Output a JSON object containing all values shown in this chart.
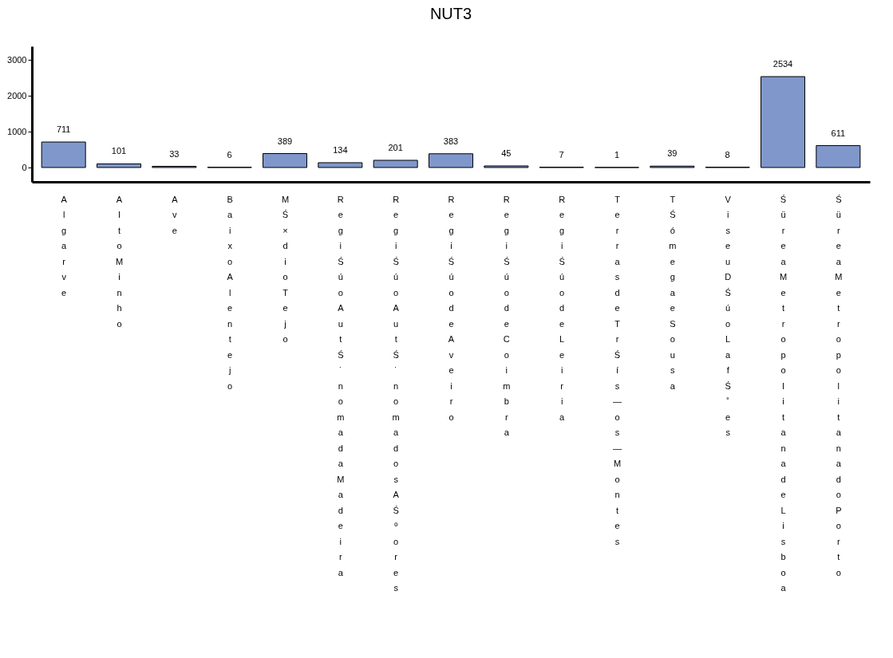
{
  "chart_data": {
    "type": "bar",
    "title": "NUT3",
    "categories": [
      "Algarve",
      "Alto Minho",
      "Ave",
      "Baixo Alentejo",
      "MŚ×dio Tejo",
      "RegiŚúo AutŚ˙noma da Madeira",
      "RegiŚúo AutŚ˙noma dos AŚºores",
      "RegiŚúo de Aveiro",
      "RegiŚúo de Coimbra",
      "RegiŚúo de Leiria",
      "Terras de TrŚís—os—Montes",
      "TŚómega e Sousa",
      "Viseu DŚúo LafŚ˚es",
      "Śürea Metropolitana de Lisboa",
      "Śürea Metropolitana do Porto"
    ],
    "values": [
      711,
      101,
      33,
      6,
      389,
      134,
      201,
      383,
      45,
      7,
      1,
      39,
      8,
      2534,
      611
    ],
    "color": "#7f97cb",
    "ylim": [
      -400,
      3380
    ],
    "yticks": [
      0,
      1000,
      2000,
      3000
    ],
    "data_labels": true,
    "grid": false
  }
}
